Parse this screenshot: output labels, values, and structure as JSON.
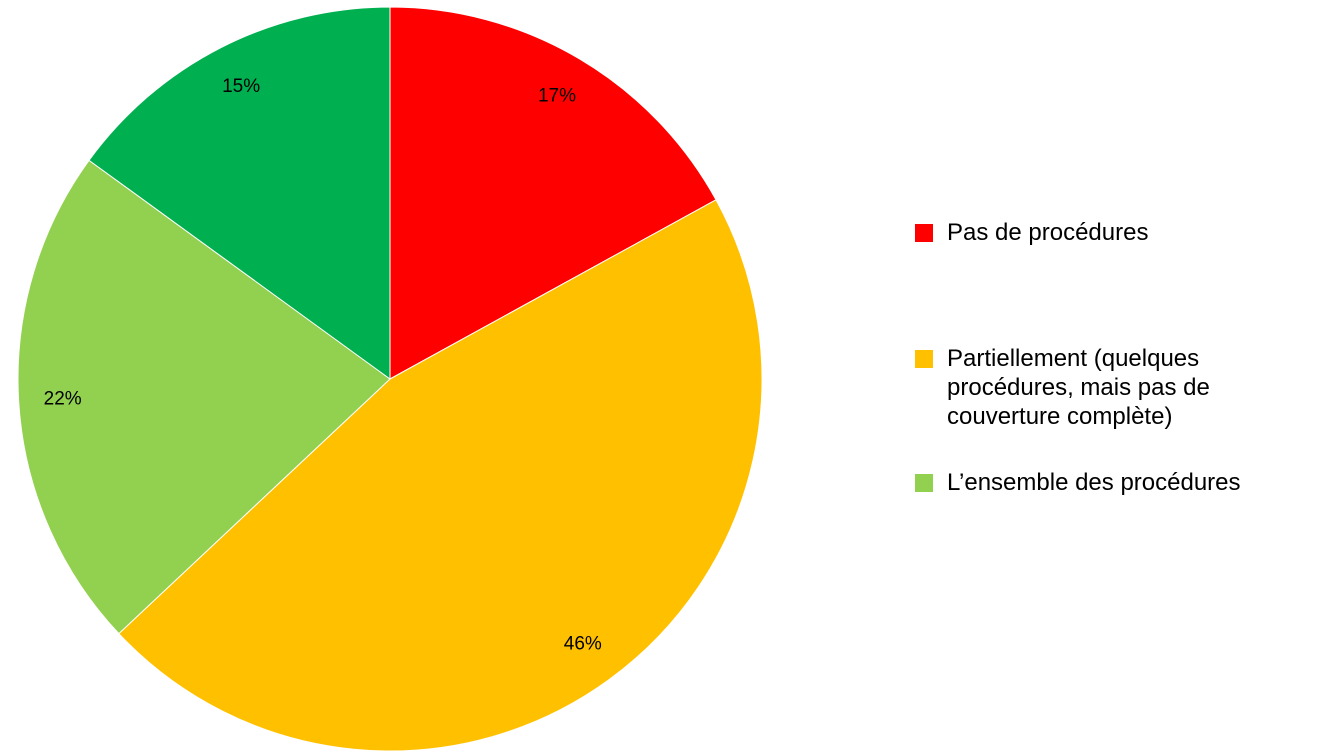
{
  "chart_data": {
    "type": "pie",
    "categories": [
      "Pas de procédures",
      "Partiellement (quelques procédures, mais pas de couverture complète)",
      "L’ensemble des procédures",
      null
    ],
    "values": [
      17,
      46,
      22,
      15
    ],
    "value_labels": [
      "17%",
      "46%",
      "22%",
      "15%"
    ],
    "colors": [
      "#ff0000",
      "#ffc000",
      "#92d050",
      "#00b050"
    ],
    "legend": "right"
  }
}
